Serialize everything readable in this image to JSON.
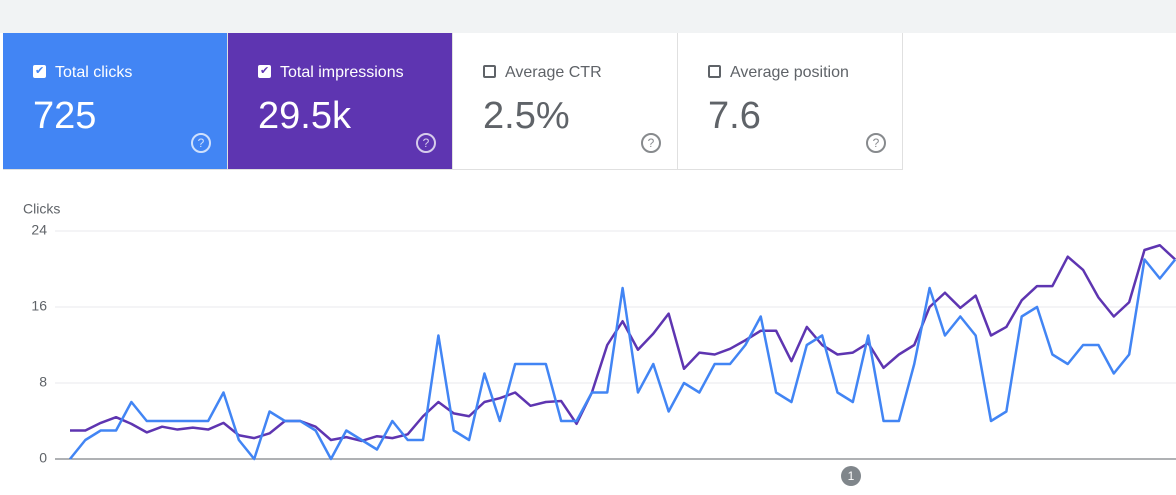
{
  "cards": [
    {
      "label": "Total clicks",
      "value": "725",
      "checked": true,
      "color": "#4285f4"
    },
    {
      "label": "Total impressions",
      "value": "29.5k",
      "checked": true,
      "color": "#5e35b1"
    },
    {
      "label": "Average CTR",
      "value": "2.5%",
      "checked": false,
      "color": "#ffffff"
    },
    {
      "label": "Average position",
      "value": "7.6",
      "checked": false,
      "color": "#ffffff"
    }
  ],
  "chart_data": {
    "type": "line",
    "ylabel": "Clicks",
    "annotation": "1",
    "categories": [
      null,
      null,
      null,
      null,
      null,
      null,
      null,
      null,
      null,
      null,
      null,
      null,
      null,
      null,
      null,
      null,
      null,
      null,
      null,
      null,
      null,
      null,
      null,
      null,
      null,
      null,
      null,
      null,
      null,
      null,
      null,
      null,
      null,
      null,
      null,
      null,
      null,
      null,
      null,
      null,
      null,
      null,
      null,
      null,
      null,
      null,
      null,
      null,
      null,
      null,
      null,
      null,
      null,
      null,
      null,
      null,
      null,
      null,
      null,
      null,
      null,
      null,
      null,
      null,
      null,
      null,
      null,
      null,
      null,
      null,
      null,
      null,
      null
    ],
    "series": [
      {
        "name": "Total impressions",
        "color": "#5e35b1",
        "values": [
          3,
          3,
          3.8,
          4.4,
          3.7,
          2.8,
          3.4,
          3.1,
          3.3,
          3.1,
          3.8,
          2.5,
          2.2,
          2.7,
          4,
          4,
          3.4,
          2,
          2.3,
          1.9,
          2.4,
          2.2,
          2.6,
          4.5,
          6,
          4.8,
          4.5,
          6,
          6.4,
          7,
          5.6,
          6,
          6.1,
          3.7,
          7,
          12,
          14.5,
          11.5,
          13.2,
          15.3,
          9.5,
          11.2,
          11,
          11.6,
          12.5,
          13.5,
          13.5,
          10.3,
          13.9,
          12,
          11,
          11.2,
          12.2,
          9.6,
          11,
          12,
          16,
          17.5,
          15.9,
          17.2,
          13,
          13.9,
          16.7,
          18.2,
          18.2,
          21.3,
          19.9,
          17,
          15,
          16.5,
          22,
          22.5,
          21
        ]
      },
      {
        "name": "Total clicks",
        "color": "#4285f4",
        "values": [
          0,
          2,
          3,
          3,
          6,
          4,
          4,
          4,
          4,
          4,
          7,
          2,
          0,
          5,
          4,
          4,
          3,
          0,
          3,
          2,
          1,
          4,
          2,
          2,
          13,
          3,
          2,
          9,
          4,
          10,
          10,
          10,
          4,
          4,
          7,
          7,
          18,
          7,
          10,
          5,
          8,
          7,
          10,
          10,
          12,
          15,
          7,
          6,
          12,
          13,
          7,
          6,
          13,
          4,
          4,
          10,
          18,
          13,
          15,
          13,
          4,
          5,
          15,
          16,
          11,
          10,
          12,
          12,
          9,
          11,
          21,
          19,
          21
        ]
      }
    ],
    "ylim": [
      0,
      24
    ],
    "yticks": [
      0,
      8,
      16,
      24
    ],
    "grid": true
  }
}
